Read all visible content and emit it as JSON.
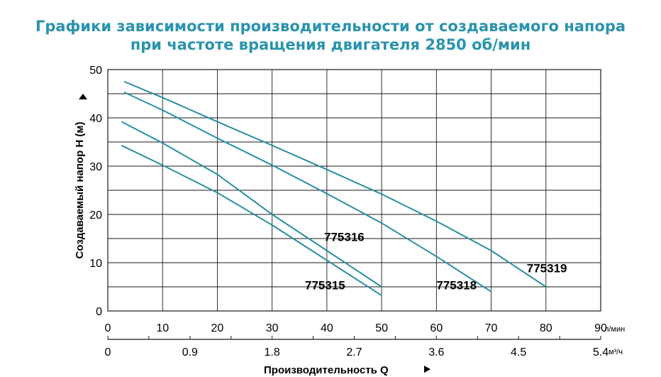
{
  "title_line_1": "Графики зависимости производительности от создаваемого напора",
  "title_line_2": "при частоте вращения двигателя 2850 об/мин",
  "colors": {
    "title": "#2a93ad",
    "series_line": "#2a8fa0",
    "grid": "#1a1a1a",
    "text": "#000000"
  },
  "chart_data": {
    "type": "line",
    "title": "Графики зависимости производительности от создаваемого напора при частоте вращения двигателя 2850 об/мин",
    "ylabel": "Создаваемый напор H (м)",
    "xlabel": "Производительность Q",
    "ylim": [
      0,
      50
    ],
    "xlim": [
      0,
      90
    ],
    "grid": true,
    "y_ticks": [
      0,
      10,
      20,
      30,
      40,
      50
    ],
    "x_ticks_lpm": [
      0,
      10,
      20,
      30,
      40,
      50,
      60,
      70,
      80,
      90
    ],
    "x_unit_lpm": "л/мин",
    "x_ticks_m3h": [
      "0",
      "0.9",
      "1.8",
      "2.7",
      "3.6",
      "4.5",
      "5.4"
    ],
    "x_unit_m3h": "м³/ч",
    "series": [
      {
        "name": "775315",
        "x": [
          2.5,
          10,
          20,
          30,
          40,
          50
        ],
        "y": [
          34.3,
          30.2,
          24.5,
          17.8,
          10.5,
          3.2
        ]
      },
      {
        "name": "775316",
        "x": [
          2.5,
          10,
          20,
          30,
          40,
          50
        ],
        "y": [
          39.2,
          34.8,
          28.3,
          20.0,
          12.5,
          5.0
        ]
      },
      {
        "name": "775318",
        "x": [
          3,
          10,
          20,
          30,
          40,
          50,
          60,
          70
        ],
        "y": [
          45.3,
          41.6,
          35.8,
          30.2,
          24.3,
          18.2,
          11.3,
          4.0
        ]
      },
      {
        "name": "775319",
        "x": [
          3,
          10,
          20,
          30,
          40,
          50,
          60,
          70,
          80
        ],
        "y": [
          47.5,
          44.2,
          39.2,
          34.3,
          29.3,
          24.2,
          18.6,
          12.5,
          5.0
        ]
      }
    ],
    "annotations": [
      {
        "text": "775316",
        "x": 39.5,
        "y": 14.5
      },
      {
        "text": "775315",
        "x": 36.0,
        "y": 4.5
      },
      {
        "text": "775318",
        "x": 60.0,
        "y": 4.5
      },
      {
        "text": "775319",
        "x": 76.5,
        "y": 8.0
      }
    ]
  }
}
